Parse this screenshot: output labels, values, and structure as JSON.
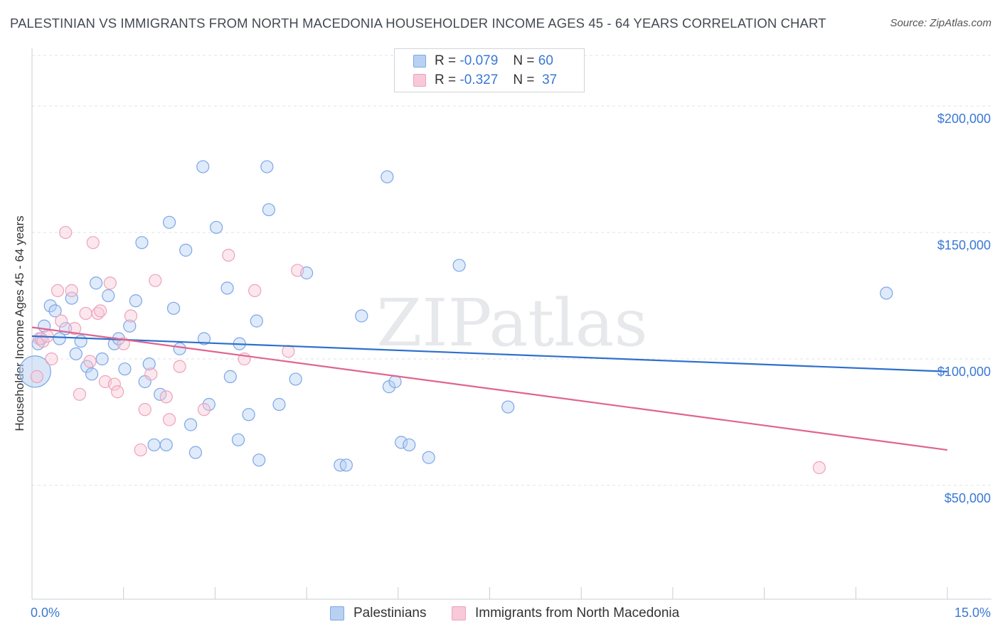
{
  "chart_data": {
    "type": "scatter",
    "title": "PALESTINIAN VS IMMIGRANTS FROM NORTH MACEDONIA HOUSEHOLDER INCOME AGES 45 - 64 YEARS CORRELATION CHART",
    "source": "Source: ZipAtlas.com",
    "xlabel": "",
    "ylabel": "Householder Income Ages 45 - 64 years",
    "xlim": [
      0,
      15
    ],
    "ylim": [
      5000,
      220000
    ],
    "x_tick_labels": [
      "0.0%",
      "15.0%"
    ],
    "y_ticks": [
      50000,
      100000,
      150000,
      200000
    ],
    "y_tick_labels": [
      "$50,000",
      "$100,000",
      "$150,000",
      "$200,000"
    ],
    "watermark": "ZIPatlas",
    "legend": [
      {
        "r_label": "R =",
        "r_value": "-0.079",
        "n_label": "N =",
        "n_value": "60"
      },
      {
        "r_label": "R =",
        "r_value": "-0.327",
        "n_label": "N =",
        "n_value": "37"
      }
    ],
    "series": [
      {
        "name": "Palestinians",
        "color": "#7ba7e6",
        "fill": "#b8d1f3",
        "line_color": "#2e6fce",
        "trend": {
          "x": [
            0,
            15
          ],
          "y": [
            109000,
            95000
          ]
        },
        "points": [
          [
            0.05,
            95000
          ],
          [
            0.1,
            106000
          ],
          [
            0.15,
            108000
          ],
          [
            0.2,
            113000
          ],
          [
            0.3,
            121000
          ],
          [
            0.38,
            119000
          ],
          [
            0.45,
            108000
          ],
          [
            0.55,
            112000
          ],
          [
            0.65,
            124000
          ],
          [
            0.72,
            102000
          ],
          [
            0.8,
            107000
          ],
          [
            0.9,
            97000
          ],
          [
            0.98,
            94000
          ],
          [
            1.05,
            130000
          ],
          [
            1.15,
            100000
          ],
          [
            1.25,
            125000
          ],
          [
            1.35,
            106000
          ],
          [
            1.42,
            108000
          ],
          [
            1.52,
            96000
          ],
          [
            1.6,
            113000
          ],
          [
            1.7,
            123000
          ],
          [
            1.8,
            146000
          ],
          [
            1.85,
            91000
          ],
          [
            1.92,
            98000
          ],
          [
            2.0,
            66000
          ],
          [
            2.1,
            86000
          ],
          [
            2.2,
            66000
          ],
          [
            2.25,
            154000
          ],
          [
            2.32,
            120000
          ],
          [
            2.42,
            104000
          ],
          [
            2.52,
            143000
          ],
          [
            2.6,
            74000
          ],
          [
            2.68,
            63000
          ],
          [
            2.8,
            176000
          ],
          [
            2.82,
            108000
          ],
          [
            2.9,
            82000
          ],
          [
            3.02,
            152000
          ],
          [
            3.2,
            128000
          ],
          [
            3.25,
            93000
          ],
          [
            3.38,
            68000
          ],
          [
            3.4,
            106000
          ],
          [
            3.55,
            78000
          ],
          [
            3.68,
            115000
          ],
          [
            3.72,
            60000
          ],
          [
            3.85,
            176000
          ],
          [
            3.88,
            159000
          ],
          [
            4.05,
            82000
          ],
          [
            4.32,
            92000
          ],
          [
            4.5,
            134000
          ],
          [
            5.05,
            58000
          ],
          [
            5.15,
            58000
          ],
          [
            5.4,
            117000
          ],
          [
            5.82,
            172000
          ],
          [
            5.85,
            89000
          ],
          [
            5.95,
            91000
          ],
          [
            6.05,
            67000
          ],
          [
            6.18,
            66000
          ],
          [
            6.5,
            61000
          ],
          [
            7.0,
            137000
          ],
          [
            7.8,
            81000
          ],
          [
            14.0,
            126000
          ]
        ]
      },
      {
        "name": "Immigrants from North Macedonia",
        "color": "#eda2bc",
        "fill": "#f8c9d8",
        "line_color": "#e0648e",
        "trend": {
          "x": [
            0,
            15
          ],
          "y": [
            112500,
            64000
          ]
        },
        "points": [
          [
            0.08,
            93000
          ],
          [
            0.12,
            108000
          ],
          [
            0.18,
            107000
          ],
          [
            0.25,
            109000
          ],
          [
            0.32,
            100000
          ],
          [
            0.42,
            127000
          ],
          [
            0.48,
            115000
          ],
          [
            0.55,
            150000
          ],
          [
            0.65,
            127000
          ],
          [
            0.7,
            112000
          ],
          [
            0.78,
            86000
          ],
          [
            0.88,
            118000
          ],
          [
            0.95,
            99000
          ],
          [
            1.0,
            146000
          ],
          [
            1.08,
            118000
          ],
          [
            1.12,
            119000
          ],
          [
            1.2,
            91000
          ],
          [
            1.28,
            130000
          ],
          [
            1.35,
            90000
          ],
          [
            1.4,
            87000
          ],
          [
            1.5,
            106000
          ],
          [
            1.62,
            117000
          ],
          [
            1.78,
            64000
          ],
          [
            1.85,
            80000
          ],
          [
            1.95,
            94000
          ],
          [
            2.02,
            131000
          ],
          [
            2.2,
            85000
          ],
          [
            2.25,
            76000
          ],
          [
            2.42,
            97000
          ],
          [
            2.82,
            80000
          ],
          [
            3.22,
            141000
          ],
          [
            3.48,
            100000
          ],
          [
            3.65,
            127000
          ],
          [
            4.2,
            103000
          ],
          [
            4.35,
            135000
          ],
          [
            12.9,
            57000
          ]
        ]
      }
    ]
  }
}
